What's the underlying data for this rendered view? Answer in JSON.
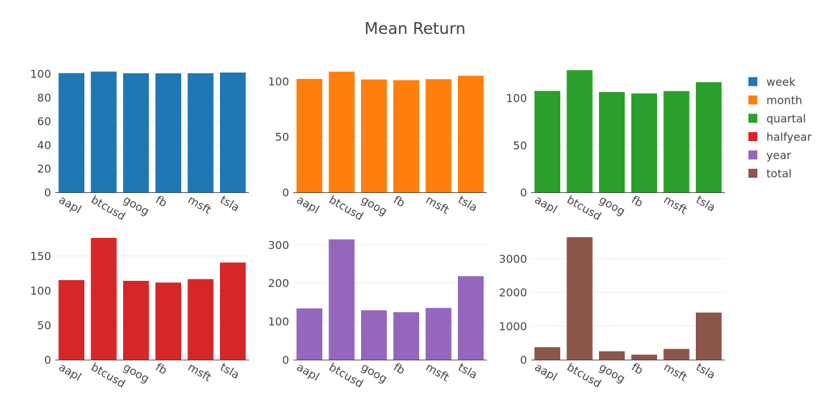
{
  "chart_data": {
    "type": "bar",
    "title": "Mean Return",
    "categories": [
      "aapl",
      "btcusd",
      "goog",
      "fb",
      "msft",
      "tsla"
    ],
    "grid": true,
    "legend_position": "right",
    "legend": [
      "week",
      "month",
      "quartal",
      "halfyear",
      "year",
      "total"
    ],
    "subplots": [
      {
        "series": "week",
        "color": "#1f77b4",
        "values": [
          100.5,
          101.8,
          100.4,
          100.3,
          100.4,
          101.0
        ],
        "ylim": [
          0,
          105
        ],
        "yticks": [
          0,
          20,
          40,
          60,
          80,
          100
        ]
      },
      {
        "series": "month",
        "color": "#ff7f0e",
        "values": [
          102,
          108.5,
          101.5,
          100.8,
          101.8,
          104.8
        ],
        "ylim": [
          0,
          112
        ],
        "yticks": [
          0,
          50,
          100
        ]
      },
      {
        "series": "quartal",
        "color": "#2ca02c",
        "values": [
          107.5,
          129.5,
          106.3,
          104.8,
          107.3,
          116.8
        ],
        "ylim": [
          0,
          132
        ],
        "yticks": [
          0,
          50,
          100
        ]
      },
      {
        "series": "halfyear",
        "color": "#d62728",
        "values": [
          115,
          176,
          114,
          111.5,
          116.5,
          140.5
        ],
        "ylim": [
          0,
          180
        ],
        "yticks": [
          0,
          50,
          100,
          150
        ]
      },
      {
        "series": "year",
        "color": "#9467bd",
        "values": [
          134,
          314,
          129,
          124,
          135,
          218
        ],
        "ylim": [
          0,
          325
        ],
        "yticks": [
          0,
          100,
          200,
          300
        ]
      },
      {
        "series": "total",
        "color": "#8c564b",
        "values": [
          370,
          3640,
          250,
          150,
          320,
          1400
        ],
        "ylim": [
          0,
          3700
        ],
        "yticks": [
          0,
          1000,
          2000,
          3000
        ]
      }
    ]
  }
}
